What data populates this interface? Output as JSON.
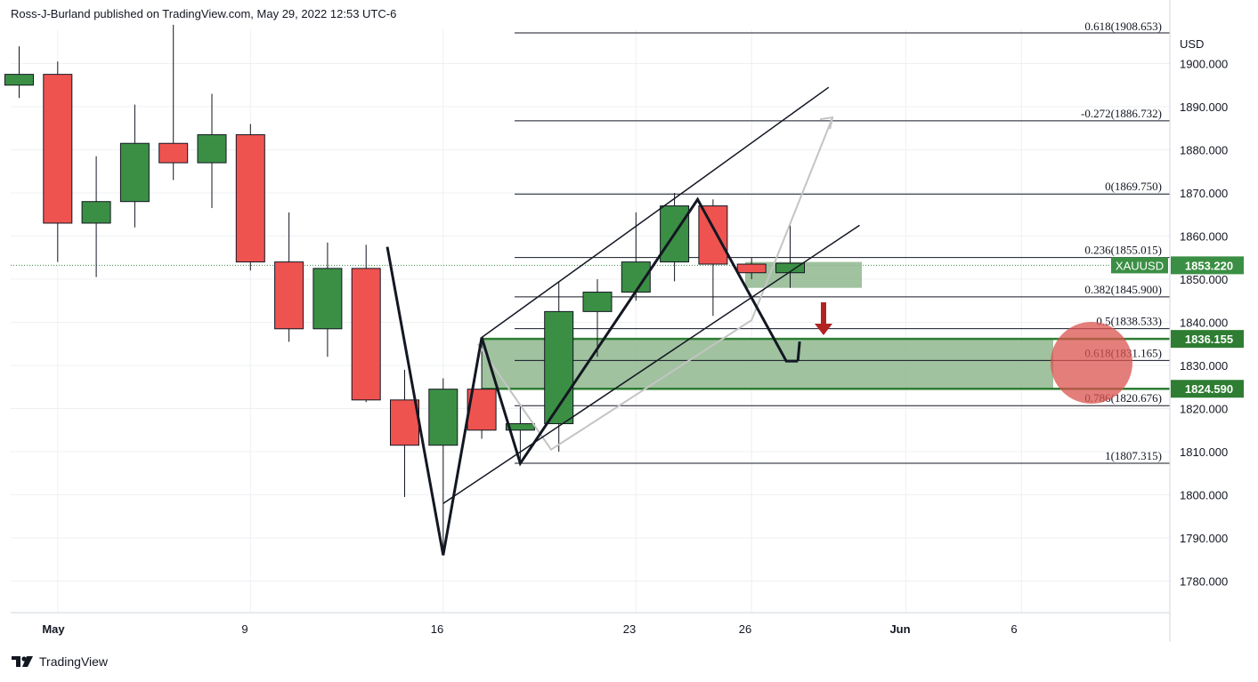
{
  "header": {
    "published": "Ross-J-Burland published on TradingView.com, May 29, 2022 12:53 UTC-6"
  },
  "footer": {
    "brand": "TradingView"
  },
  "colors": {
    "bull": "#3b8f44",
    "bear": "#ef5350",
    "zone": "#8fb78e",
    "zone_line": "#2e7d32",
    "arrow": "#b22222",
    "circle": "#d9534f"
  },
  "chart_data": {
    "type": "candlestick",
    "symbol": "XAUUSD",
    "currency": "USD",
    "ylim": [
      1772,
      1911
    ],
    "y_ticks": [
      1780,
      1790,
      1800,
      1810,
      1820,
      1830,
      1840,
      1850,
      1860,
      1870,
      1880,
      1890,
      1900
    ],
    "y_tick_labels": [
      "1780.000",
      "1790.000",
      "1800.000",
      "1810.000",
      "1820.000",
      "1830.000",
      "1840.000",
      "1850.000",
      "1860.000",
      "1870.000",
      "1880.000",
      "1890.000",
      "1900.000"
    ],
    "x_labels": [
      {
        "label": "May",
        "idx": 1
      },
      {
        "label": "9",
        "idx": 6
      },
      {
        "label": "16",
        "idx": 11
      },
      {
        "label": "23",
        "idx": 16
      },
      {
        "label": "26",
        "idx": 19
      },
      {
        "label": "Jun",
        "idx": 23
      },
      {
        "label": "6",
        "idx": 26
      }
    ],
    "candles": [
      {
        "idx": 0,
        "o": 1895,
        "h": 1904,
        "l": 1892,
        "c": 1897.5
      },
      {
        "idx": 1,
        "o": 1897.5,
        "h": 1900.5,
        "l": 1854,
        "c": 1863
      },
      {
        "idx": 2,
        "o": 1863,
        "h": 1878.5,
        "l": 1850.5,
        "c": 1868
      },
      {
        "idx": 3,
        "o": 1868,
        "h": 1890.5,
        "l": 1862,
        "c": 1881.5
      },
      {
        "idx": 4,
        "o": 1881.5,
        "h": 1909,
        "l": 1873,
        "c": 1877
      },
      {
        "idx": 5,
        "o": 1877,
        "h": 1893,
        "l": 1866.5,
        "c": 1883.5
      },
      {
        "idx": 6,
        "o": 1883.5,
        "h": 1886,
        "l": 1852,
        "c": 1854
      },
      {
        "idx": 7,
        "o": 1854,
        "h": 1865.5,
        "l": 1835.5,
        "c": 1838.5
      },
      {
        "idx": 8,
        "o": 1838.5,
        "h": 1858.5,
        "l": 1832,
        "c": 1852.5
      },
      {
        "idx": 9,
        "o": 1852.5,
        "h": 1858,
        "l": 1821.5,
        "c": 1822
      },
      {
        "idx": 10,
        "o": 1822,
        "h": 1829,
        "l": 1799.5,
        "c": 1811.5
      },
      {
        "idx": 11,
        "o": 1811.5,
        "h": 1827,
        "l": 1786,
        "c": 1824.5
      },
      {
        "idx": 12,
        "o": 1824.5,
        "h": 1836.5,
        "l": 1813,
        "c": 1815
      },
      {
        "idx": 13,
        "o": 1815,
        "h": 1821,
        "l": 1808,
        "c": 1816.5
      },
      {
        "idx": 14,
        "o": 1816.5,
        "h": 1849.5,
        "l": 1810,
        "c": 1842.5
      },
      {
        "idx": 15,
        "o": 1842.5,
        "h": 1850,
        "l": 1832,
        "c": 1847
      },
      {
        "idx": 16,
        "o": 1847,
        "h": 1865.5,
        "l": 1845,
        "c": 1854
      },
      {
        "idx": 17,
        "o": 1854,
        "h": 1870,
        "l": 1849.5,
        "c": 1867
      },
      {
        "idx": 18,
        "o": 1867,
        "h": 1868.5,
        "l": 1841.5,
        "c": 1853.5
      },
      {
        "idx": 19,
        "o": 1853.5,
        "h": 1855,
        "l": 1850,
        "c": 1851.5
      },
      {
        "idx": 20,
        "o": 1851.5,
        "h": 1862.5,
        "l": 1848,
        "c": 1853.7
      }
    ],
    "fib_levels": [
      {
        "label": "-0.272(1886.732)",
        "value": 1886.732
      },
      {
        "label": "0(1869.750)",
        "value": 1869.75
      },
      {
        "label": "0.236(1855.015)",
        "value": 1855.015
      },
      {
        "label": "0.382(1845.900)",
        "value": 1845.9
      },
      {
        "label": "0.5(1838.533)",
        "value": 1838.533
      },
      {
        "label": "0.618(1831.165)",
        "value": 1831.165
      },
      {
        "label": "0.786(1820.676)",
        "value": 1820.676
      },
      {
        "label": "1(1807.315)",
        "value": 1807.315
      }
    ],
    "fib_top_partial": "0.618(1908.653)",
    "price_tags": [
      {
        "label": "XAUUSD",
        "price_label": "1853.220",
        "value": 1853.22,
        "color": "#3b8f44"
      },
      {
        "label": "",
        "price_label": "1836.155",
        "value": 1836.155,
        "color": "#2e7d32"
      },
      {
        "label": "",
        "price_label": "1824.590",
        "value": 1824.59,
        "color": "#2e7d32"
      }
    ],
    "support_zone": {
      "top": 1836.155,
      "bottom": 1824.59
    },
    "small_zone": {
      "top": 1854,
      "bottom": 1848
    },
    "wave_black": [
      [
        9.55,
        1857.5
      ],
      [
        11,
        1786
      ],
      [
        12,
        1836.5
      ],
      [
        13,
        1807.3
      ],
      [
        17.6,
        1868.5
      ],
      [
        19.9,
        1831
      ],
      [
        20.2,
        1831
      ]
    ],
    "wave_grey": [
      [
        11.9,
        1835
      ],
      [
        13.8,
        1810.5
      ],
      [
        19,
        1840.5
      ],
      [
        21.1,
        1887.5
      ]
    ],
    "channel_upper": [
      [
        12,
        1836.5
      ],
      [
        21,
        1894.5
      ]
    ],
    "channel_lower": [
      [
        11,
        1798
      ],
      [
        21.8,
        1862.5
      ]
    ],
    "arrow_target": 1837
  }
}
